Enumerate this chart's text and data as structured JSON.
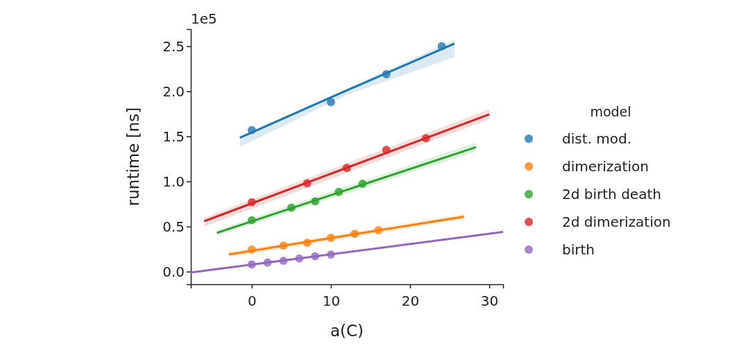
{
  "chart_data": {
    "type": "scatter",
    "xlabel": "a(C)",
    "ylabel": "runtime [ns]",
    "annotations": [
      "1e5"
    ],
    "legend_title": "model",
    "legend": "right",
    "grid": false,
    "marker": "circle",
    "xlim": [
      -7.7,
      31.75
    ],
    "xticks": [
      0,
      10,
      20,
      30
    ],
    "ylim": [
      -0.14,
      2.69
    ],
    "yticks": [
      {
        "value": 0,
        "label": "0.0"
      },
      0.5,
      {
        "value": 1,
        "label": "1.0"
      },
      1.5,
      {
        "value": 2,
        "label": "2.0"
      },
      2.5
    ],
    "series": [
      {
        "name": "dist. mod.",
        "color": "#1f77b4",
        "x": [
          0,
          10,
          17,
          24
        ],
        "values": [
          1.57,
          1.88,
          2.19,
          2.5
        ]
      },
      {
        "name": "dimerization",
        "color": "#ff7f0e",
        "x": [
          0,
          4,
          7,
          10,
          13,
          16
        ],
        "values": [
          0.245,
          0.29,
          0.32,
          0.375,
          0.42,
          0.46
        ]
      },
      {
        "name": "2d birth death",
        "color": "#2ca02c",
        "x": [
          0,
          5,
          8,
          11,
          14
        ],
        "values": [
          0.57,
          0.71,
          0.78,
          0.885,
          0.975
        ]
      },
      {
        "name": "2d dimerization",
        "color": "#d62728",
        "x": [
          0,
          7,
          12,
          17,
          22
        ],
        "values": [
          0.77,
          0.98,
          1.15,
          1.35,
          1.48
        ]
      },
      {
        "name": "birth",
        "color": "#9467bd",
        "x": [
          0,
          2,
          4,
          6,
          8,
          10
        ],
        "values": [
          0.08,
          0.1,
          0.12,
          0.145,
          0.17,
          0.19
        ]
      },
      {
        "type": "line",
        "marker": "none",
        "color": "#1f77b4",
        "x": [
          -1.5,
          12,
          25.6
        ],
        "values": [
          1.485,
          2.01,
          2.53
        ],
        "lower": [
          1.38,
          1.96,
          2.38
        ],
        "upper": [
          1.5,
          2.03,
          2.57
        ]
      },
      {
        "type": "line",
        "marker": "none",
        "color": "#ff7f0e",
        "x": [
          -2.9,
          26.8
        ],
        "values": [
          0.19,
          0.61
        ],
        "lower": [
          0.16,
          0.58
        ],
        "upper": [
          0.22,
          0.64
        ]
      },
      {
        "type": "line",
        "marker": "none",
        "color": "#2ca02c",
        "x": [
          -4.4,
          28.3
        ],
        "values": [
          0.43,
          1.38
        ],
        "lower": [
          0.4,
          1.33
        ],
        "upper": [
          0.46,
          1.43
        ]
      },
      {
        "type": "line",
        "marker": "none",
        "color": "#d62728",
        "x": [
          -6,
          30
        ],
        "values": [
          0.56,
          1.745
        ],
        "lower": [
          0.5,
          1.69
        ],
        "upper": [
          0.6,
          1.8
        ]
      },
      {
        "type": "line",
        "marker": "none",
        "color": "#9467bd",
        "x": [
          -7.7,
          31.75
        ],
        "values": [
          -0.01,
          0.44
        ]
      }
    ]
  }
}
